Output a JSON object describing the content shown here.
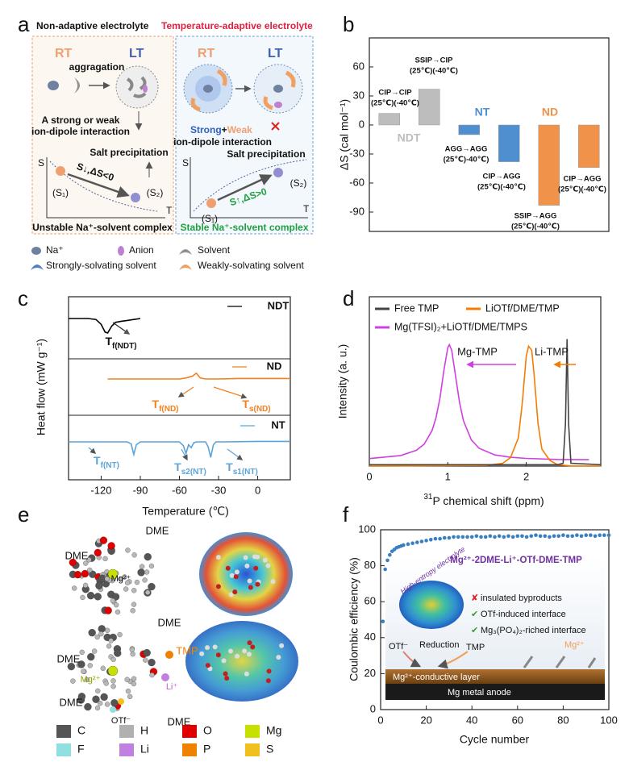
{
  "panel_labels": [
    "a",
    "b",
    "c",
    "d",
    "e",
    "f"
  ],
  "panel_a": {
    "header_left": "Non-adaptive electrolyte",
    "header_right": "Temperature-adaptive electrolyte",
    "left": {
      "rt": "RT",
      "lt": "LT",
      "aggregation": "aggragation",
      "interaction": [
        "A strong or weak",
        "ion-dipole interaction"
      ],
      "precipitation": "Salt precipitation",
      "s_axis": "S",
      "t_axis": "T",
      "arrow": "S↓,ΔS<0",
      "s1": "(S₁)",
      "s2": "(S₂)",
      "caption": "Unstable Na⁺-solvent complex"
    },
    "right": {
      "rt": "RT",
      "lt": "LT",
      "strong": "Strong",
      "plus": "+",
      "weak": "Weak",
      "interaction": "ion-dipole interaction",
      "precipitation": "Salt precipitation",
      "s_axis": "S",
      "t_axis": "T",
      "arrow": "S↑,ΔS>0",
      "s1": "(S₁)",
      "s2": "(S₂)",
      "caption": "Stable Na⁺-solvent complex"
    },
    "legend": [
      "Na⁺",
      "Anion",
      "Solvent",
      "Strongly-solvating solvent",
      "Weakly-solvating solvent"
    ]
  },
  "panel_e": {
    "labels": [
      "DME",
      "DME",
      "Mg²⁺",
      "DME",
      "TMP",
      "DME",
      "Mg²⁺",
      "Li⁺",
      "DME",
      "OTf⁻",
      "DME"
    ],
    "legend": [
      {
        "name": "C",
        "color": "#555555"
      },
      {
        "name": "H",
        "color": "#b0b0b0"
      },
      {
        "name": "O",
        "color": "#e00000"
      },
      {
        "name": "Mg",
        "color": "#c8e000"
      },
      {
        "name": "F",
        "color": "#90e0e0"
      },
      {
        "name": "Li",
        "color": "#c080e0"
      },
      {
        "name": "P",
        "color": "#f08000"
      },
      {
        "name": "S",
        "color": "#f0c020"
      }
    ]
  },
  "chart_data": [
    {
      "type": "bar",
      "ylabel": "ΔS (cal mol⁻¹)",
      "categories": [
        [
          "CIP→CIP",
          "(25℃)(-40℃)"
        ],
        [
          "SSIP→CIP",
          "(25℃)(-40℃)"
        ],
        [
          "AGG→AGG",
          "(25℃)-40℃)"
        ],
        [
          "CIP→AGG",
          "(25℃)(-40℃)"
        ],
        [
          "SSIP→AGG",
          "(25℃)(-40℃)"
        ],
        [
          "CIP→AGG",
          "(25℃)(-40℃)"
        ]
      ],
      "series": [
        {
          "name": "NDT",
          "color": "#bdbdbd",
          "values": [
            12,
            37,
            null,
            null,
            null,
            null
          ]
        },
        {
          "name": "NT",
          "color": "#4f8fd0",
          "values": [
            null,
            null,
            -10,
            -38,
            null,
            null
          ]
        },
        {
          "name": "ND",
          "color": "#f0924a",
          "values": [
            null,
            null,
            null,
            null,
            -83,
            -44
          ]
        }
      ],
      "ylim": [
        -110,
        90
      ],
      "yticks": [
        60,
        30,
        0,
        -30,
        -60,
        -90
      ]
    },
    {
      "type": "line",
      "xlabel": "Temperature (℃)",
      "ylabel": "Heat flow (mW g⁻¹)",
      "xlim": [
        -145,
        25
      ],
      "xticks": [
        -120,
        -90,
        -60,
        -30,
        0
      ],
      "series": [
        {
          "name": "NDT",
          "color": "#000000",
          "x": [
            -145,
            -130,
            -124,
            -120,
            -117,
            -115,
            -112,
            -109,
            -105,
            -100,
            -95,
            -90
          ],
          "values": [
            0,
            0,
            -0.1,
            -0.6,
            -1.4,
            -1.5,
            -0.8,
            -0.4,
            -0.3,
            -0.2,
            -0.1,
            0
          ],
          "annotations": [
            {
              "main": "T",
              "sub": "f(NDT)"
            }
          ]
        },
        {
          "name": "ND",
          "color": "#f08020",
          "x": [
            -115,
            -80,
            -60,
            -55,
            -50,
            -47,
            -44,
            -40,
            -30,
            -15,
            0,
            25
          ],
          "values": [
            0,
            0,
            0,
            0.1,
            0.3,
            0.6,
            0.1,
            0,
            0,
            0.05,
            0.05,
            0.05
          ],
          "annotations": [
            {
              "main": "T",
              "sub": "f(ND)"
            },
            {
              "main": "T",
              "sub": "s(ND)"
            }
          ]
        },
        {
          "name": "NT",
          "color": "#5ba3d8",
          "x": [
            -145,
            -110,
            -100,
            -97,
            -95,
            -93,
            -90,
            -70,
            -60,
            -57,
            -55,
            -53,
            -51,
            -49,
            -47,
            -40,
            -38,
            -36,
            -34,
            -32,
            -25,
            0,
            25
          ],
          "values": [
            0,
            0,
            0,
            -0.2,
            -1.3,
            -0.3,
            0,
            0,
            0,
            -0.4,
            -1.2,
            -0.3,
            -0.6,
            -0.1,
            0,
            0,
            -0.5,
            -1.6,
            -0.3,
            0,
            0,
            0.05,
            0.05
          ],
          "annotations": [
            {
              "main": "T",
              "sub": "f(NT)"
            },
            {
              "main": "T",
              "sub": "s2(NT)"
            },
            {
              "main": "T",
              "sub": "s1(NT)"
            }
          ]
        }
      ]
    },
    {
      "type": "line",
      "xlabel": {
        "sup": "31",
        "main": "P chemical shift (ppm)"
      },
      "ylabel": "Intensity (a. u.)",
      "xlim": [
        0,
        2.95
      ],
      "xticks": [
        0,
        1,
        2
      ],
      "ylim": [
        0,
        1.2
      ],
      "annotations": [
        "Mg-TMP",
        "Li-TMP"
      ],
      "series": [
        {
          "name": "Free TMP",
          "color": "#444444",
          "x": [
            0,
            2.4,
            2.47,
            2.5,
            2.52,
            2.54,
            2.57,
            2.95
          ],
          "values": [
            0.01,
            0.01,
            0.02,
            0.3,
            0.9,
            0.3,
            0.02,
            0.01
          ]
        },
        {
          "name": "LiOTf/DME/TMP",
          "color": "#f57c00",
          "x": [
            0,
            1.5,
            1.7,
            1.8,
            1.9,
            1.95,
            2.0,
            2.03,
            2.07,
            2.1,
            2.15,
            2.2,
            2.3,
            2.4,
            2.6,
            2.95
          ],
          "values": [
            0,
            0.005,
            0.02,
            0.06,
            0.2,
            0.45,
            0.78,
            0.85,
            0.82,
            0.65,
            0.3,
            0.12,
            0.04,
            0.01,
            0,
            0
          ]
        },
        {
          "name": "Mg(TFSI)₂+LiOTf/DME/TMPS",
          "color": "#d040e0",
          "x": [
            0,
            0.4,
            0.6,
            0.7,
            0.8,
            0.85,
            0.9,
            0.95,
            1.0,
            1.02,
            1.05,
            1.1,
            1.15,
            1.2,
            1.3,
            1.4,
            1.6,
            1.8,
            2.0,
            2.4,
            2.8
          ],
          "values": [
            0.053,
            0.075,
            0.112,
            0.156,
            0.252,
            0.343,
            0.483,
            0.676,
            0.84,
            0.86,
            0.819,
            0.635,
            0.45,
            0.321,
            0.185,
            0.126,
            0.079,
            0.062,
            0.054,
            0.047,
            0.045
          ]
        }
      ]
    },
    {
      "type": "scatter",
      "xlabel": "Cycle number",
      "ylabel": "Coulombic efficiency (%)",
      "xlim": [
        0,
        100
      ],
      "ylim": [
        0,
        100
      ],
      "xticks": [
        0,
        20,
        40,
        60,
        80,
        100
      ],
      "yticks": [
        0,
        20,
        40,
        60,
        80,
        100
      ],
      "color": "#3a7fc0",
      "x": [
        1,
        2,
        3,
        4,
        5,
        6,
        7,
        8,
        9,
        10,
        12,
        14,
        16,
        18,
        20,
        22,
        24,
        26,
        28,
        30,
        32,
        34,
        36,
        38,
        40,
        42,
        44,
        46,
        48,
        50,
        52,
        54,
        56,
        58,
        60,
        62,
        64,
        66,
        68,
        70,
        72,
        74,
        76,
        78,
        80,
        82,
        84,
        86,
        88,
        90,
        92,
        94,
        96,
        98,
        100
      ],
      "values": [
        49,
        78,
        83,
        86,
        88,
        89,
        90,
        90.5,
        91,
        91.5,
        92,
        92.5,
        93,
        93.5,
        94,
        94.5,
        95,
        95,
        95.5,
        95.5,
        96,
        96,
        96,
        96,
        96,
        96.5,
        96,
        96,
        96.5,
        96,
        96.5,
        96,
        96.5,
        96,
        96.5,
        96.5,
        96,
        96.5,
        97,
        96.5,
        96.5,
        96,
        96.5,
        96.5,
        97,
        96.5,
        96.5,
        97,
        96.5,
        97,
        97,
        96.5,
        97,
        97,
        97
      ],
      "inset": {
        "title": "Mg²⁺-2DME-Li⁺-OTf-DME-TMP",
        "curved": "High-entropy electrolyte",
        "items": [
          {
            "mark": "✘",
            "text": "insulated byproducts"
          },
          {
            "mark": "✔",
            "text": "OTf-induced interface"
          },
          {
            "mark": "✔",
            "text": "Mg₃(PO₄)₂-riched interface"
          }
        ],
        "otf": "OTf⁻",
        "reduction": "Reduction",
        "tmp": "TMP",
        "mg": "Mg²⁺",
        "layer": "Mg²⁺-conductive layer",
        "anode": "Mg metal anode"
      }
    }
  ]
}
